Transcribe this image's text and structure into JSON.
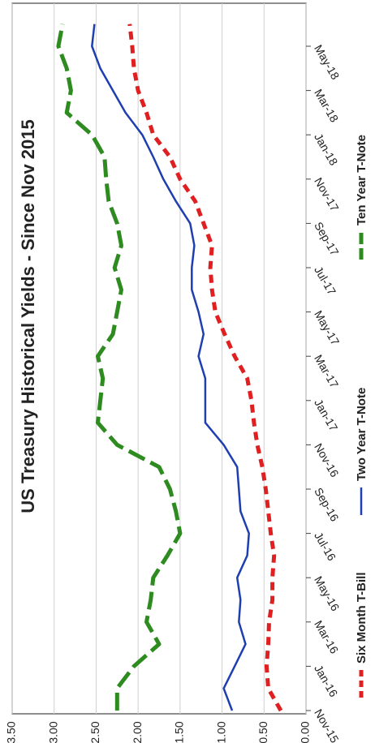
{
  "chart_data": {
    "type": "line",
    "title": "US Treasury Historical Yields - Since Nov 2015",
    "categories": [
      "Nov-15",
      null,
      "Jan-16",
      null,
      "Mar-16",
      null,
      "May-16",
      null,
      "Jul-16",
      null,
      "Sep-16",
      null,
      "Nov-16",
      null,
      "Jan-17",
      null,
      "Mar-17",
      null,
      "May-17",
      null,
      "Jul-17",
      null,
      "Sep-17",
      null,
      "Nov-17",
      null,
      "Jan-18",
      null,
      "Mar-18",
      null,
      "May-18",
      null
    ],
    "series": [
      {
        "name": "Six Month T-Bill",
        "color": "#e02020",
        "style": "dashed",
        "values": [
          0.3,
          0.45,
          0.47,
          0.45,
          0.44,
          0.4,
          0.4,
          0.38,
          0.42,
          0.45,
          0.48,
          0.52,
          0.58,
          0.62,
          0.65,
          0.7,
          0.85,
          0.97,
          1.08,
          1.12,
          1.14,
          1.12,
          1.22,
          1.32,
          1.5,
          1.62,
          1.82,
          1.9,
          2.0,
          2.05,
          2.07,
          2.1
        ]
      },
      {
        "name": "Two Year T-Note",
        "color": "#1f3fb0",
        "style": "solid",
        "values": [
          0.88,
          0.98,
          0.85,
          0.72,
          0.8,
          0.78,
          0.82,
          0.7,
          0.68,
          0.78,
          0.8,
          0.82,
          0.98,
          1.2,
          1.2,
          1.2,
          1.28,
          1.22,
          1.28,
          1.36,
          1.36,
          1.33,
          1.38,
          1.55,
          1.7,
          1.82,
          1.95,
          2.15,
          2.3,
          2.45,
          2.55,
          2.52
        ]
      },
      {
        "name": "Ten Year T-Note",
        "color": "#2e8b20",
        "style": "long-dashed",
        "values": [
          2.25,
          2.25,
          2.05,
          1.75,
          1.9,
          1.85,
          1.82,
          1.65,
          1.5,
          1.55,
          1.62,
          1.75,
          2.25,
          2.48,
          2.45,
          2.42,
          2.48,
          2.3,
          2.25,
          2.2,
          2.28,
          2.2,
          2.25,
          2.35,
          2.38,
          2.4,
          2.55,
          2.85,
          2.8,
          2.85,
          2.95,
          2.9
        ]
      }
    ],
    "ylim": [
      0,
      3.5
    ],
    "yticks": [
      {
        "value": 0,
        "label": "0.00"
      },
      {
        "value": 0.5,
        "label": "0.50"
      },
      {
        "value": 1,
        "label": "1.00"
      },
      {
        "value": 1.5,
        "label": "1.50"
      },
      {
        "value": 2,
        "label": "2.00"
      },
      {
        "value": 2.5,
        "label": "2.50"
      },
      {
        "value": 3,
        "label": "3.00"
      },
      {
        "value": 3.5,
        "label": "3.50"
      }
    ],
    "grid": true
  }
}
